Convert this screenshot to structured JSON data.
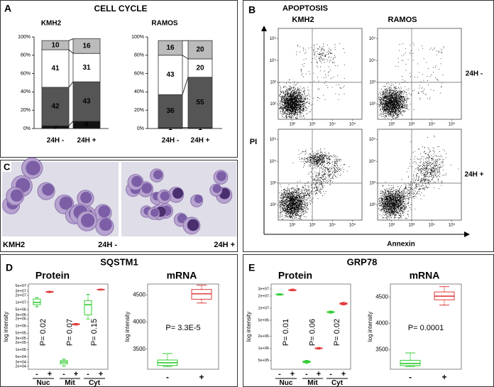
{
  "panel_a": {
    "label": "A",
    "title": "CELL CYCLE",
    "ylim": [
      0,
      100
    ],
    "yticks": [
      {
        "value": 0,
        "label": "0%"
      },
      {
        "value": 20,
        "label": "20%"
      },
      {
        "value": 40,
        "label": "40%"
      },
      {
        "value": 60,
        "label": "60%"
      },
      {
        "value": 80,
        "label": "80%"
      },
      {
        "value": 100,
        "label": "100%"
      }
    ],
    "charts": [
      {
        "title": "KMH2",
        "categories": [
          "24H -",
          "24H +"
        ],
        "series": [
          {
            "color": "#111111",
            "values": [
              3,
              8
            ]
          },
          {
            "color": "#555555",
            "values": [
              42,
              43
            ]
          },
          {
            "color": "#ffffff",
            "values": [
              41,
              31
            ]
          },
          {
            "color": "#bbbbbb",
            "values": [
              10,
              16
            ]
          }
        ]
      },
      {
        "title": "RAMOS",
        "categories": [
          "24H -",
          "24H +"
        ],
        "series": [
          {
            "color": "#111111",
            "values": [
              1,
              1
            ]
          },
          {
            "color": "#555555",
            "values": [
              36,
              55
            ]
          },
          {
            "color": "#ffffff",
            "values": [
              43,
              20
            ]
          },
          {
            "color": "#bbbbbb",
            "values": [
              16,
              20
            ]
          }
        ]
      }
    ]
  },
  "panel_b": {
    "label": "B",
    "title": "APOPTOSIS",
    "columns": [
      "KMH2",
      "RAMOS"
    ],
    "rows": [
      "24H -",
      "24H +"
    ],
    "y_label": "PI",
    "x_label": "Annexin",
    "log": true,
    "xlim": [
      20,
      300000
    ],
    "ylim": [
      20,
      300000
    ],
    "xticks": [
      {
        "value": 100,
        "label": "10²"
      },
      {
        "value": 1000,
        "label": "10³"
      },
      {
        "value": 10000,
        "label": "10⁴"
      },
      {
        "value": 100000,
        "label": "10⁵"
      }
    ],
    "yticks": [
      {
        "value": 100,
        "label": "10²"
      },
      {
        "value": 1000,
        "label": "10³"
      },
      {
        "value": 10000,
        "label": "10⁴"
      },
      {
        "value": 100000,
        "label": "10⁵"
      }
    ]
  },
  "panel_c": {
    "label": "C",
    "captions": [
      "KMH2",
      "24H -",
      "24H +"
    ]
  },
  "panel_d": {
    "label": "D",
    "title": "SQSTM1",
    "protein": {
      "title": "Protein",
      "y_label": "log intensity",
      "log": true,
      "ylim": [
        15000,
        60000000
      ],
      "yticks": [
        {
          "value": 20000,
          "label": "2e+04"
        },
        {
          "value": 30000,
          "label": "3e+04"
        },
        {
          "value": 50000,
          "label": "5e+04"
        },
        {
          "value": 100000,
          "label": "1e+05"
        },
        {
          "value": 200000,
          "label": "2e+05"
        },
        {
          "value": 300000,
          "label": "3e+05"
        },
        {
          "value": 500000,
          "label": "5e+05"
        },
        {
          "value": 1000000,
          "label": "1e+06"
        },
        {
          "value": 2000000,
          "label": "2e+06"
        },
        {
          "value": 3000000,
          "label": "3e+06"
        },
        {
          "value": 5000000,
          "label": "5e+06"
        },
        {
          "value": 10000000,
          "label": "1e+07"
        },
        {
          "value": 20000000,
          "label": "2e+07"
        },
        {
          "value": 30000000,
          "label": "3e+07"
        },
        {
          "value": 50000000,
          "label": "5e+07"
        }
      ],
      "groups": [
        {
          "label": "Nuc",
          "p_value": "P= 0.02",
          "boxes": [
            {
              "label": "-",
              "color": "#33cc33",
              "stats": [
                6500000,
                8000000,
                10000000,
                14000000,
                16000000
              ]
            },
            {
              "label": "+",
              "color": "#e03c3c",
              "stats": [
                26000000,
                27000000,
                28000000,
                29000000,
                30000000
              ]
            }
          ]
        },
        {
          "label": "Mit",
          "p_value": "P= 0.07",
          "boxes": [
            {
              "label": "-",
              "color": "#33cc33",
              "stats": [
                20000,
                25000,
                30000,
                35000,
                40000
              ]
            },
            {
              "label": "+",
              "color": "#e03c3c",
              "stats": [
                1100000,
                1150000,
                1200000,
                1250000,
                1300000
              ]
            }
          ]
        },
        {
          "label": "Cyt",
          "p_value": "P= 0.15",
          "boxes": [
            {
              "label": "-",
              "color": "#33cc33",
              "stats": [
                2000000,
                3000000,
                8000000,
                12000000,
                22000000
              ]
            },
            {
              "label": "+",
              "color": "#e03c3c",
              "stats": [
                33000000,
                34000000,
                35000000,
                36000000,
                37000000
              ]
            }
          ]
        }
      ]
    },
    "mrna": {
      "title": "mRNA",
      "y_label": "log intensity",
      "ylim": [
        3130,
        4700
      ],
      "yticks": [
        3500,
        4000,
        4500
      ],
      "p_value": "P= 3.3E-5",
      "boxes": [
        {
          "label": "-",
          "color": "#33cc33",
          "stats": [
            3180,
            3200,
            3250,
            3300,
            3420
          ]
        },
        {
          "label": "+",
          "color": "#e03c3c",
          "stats": [
            4350,
            4420,
            4520,
            4600,
            4680
          ]
        }
      ]
    }
  },
  "panel_e": {
    "label": "E",
    "title": "GRP78",
    "protein": {
      "title": "Protein",
      "y_label": "log intensity",
      "log": true,
      "ylim": [
        300000,
        40000000
      ],
      "yticks": [
        {
          "value": 500000,
          "label": "5e+05"
        },
        {
          "value": 1000000,
          "label": "1e+06"
        },
        {
          "value": 2000000,
          "label": "2e+06"
        },
        {
          "value": 5000000,
          "label": "5e+06"
        },
        {
          "value": 10000000,
          "label": "1e+07"
        },
        {
          "value": 20000000,
          "label": "2e+07"
        },
        {
          "value": 30000000,
          "label": "3e+07"
        }
      ],
      "groups": [
        {
          "label": "Nuc",
          "p_value": "P= 0.01",
          "boxes": [
            {
              "label": "-",
              "color": "#33cc33",
              "stats": [
                21000000,
                21500000,
                22000000,
                22500000,
                23000000
              ]
            },
            {
              "label": "+",
              "color": "#e03c3c",
              "stats": [
                27000000,
                27500000,
                28000000,
                29000000,
                30000000
              ]
            }
          ]
        },
        {
          "label": "Mit",
          "p_value": "P= 0.06",
          "boxes": [
            {
              "label": "-",
              "color": "#33cc33",
              "stats": [
                420000,
                440000,
                460000,
                480000,
                500000
              ]
            },
            {
              "label": "+",
              "color": "#e03c3c",
              "stats": [
                950000,
                980000,
                1000000,
                1020000,
                1050000
              ]
            }
          ]
        },
        {
          "label": "Cyt",
          "p_value": "P= 0.02",
          "boxes": [
            {
              "label": "-",
              "color": "#33cc33",
              "stats": [
                7500000,
                7800000,
                8000000,
                8200000,
                8500000
              ]
            },
            {
              "label": "+",
              "color": "#e03c3c",
              "stats": [
                12000000,
                12500000,
                13000000,
                13500000,
                14000000
              ]
            }
          ]
        }
      ]
    },
    "mrna": {
      "title": "mRNA",
      "y_label": "log intensity",
      "ylim": [
        3130,
        4750
      ],
      "yticks": [
        3500,
        4000,
        4500
      ],
      "p_value": "P= 0.0001",
      "boxes": [
        {
          "label": "-",
          "color": "#33cc33",
          "stats": [
            3180,
            3200,
            3240,
            3300,
            3440
          ]
        },
        {
          "label": "+",
          "color": "#e03c3c",
          "stats": [
            4350,
            4450,
            4520,
            4600,
            4700
          ]
        }
      ]
    }
  }
}
